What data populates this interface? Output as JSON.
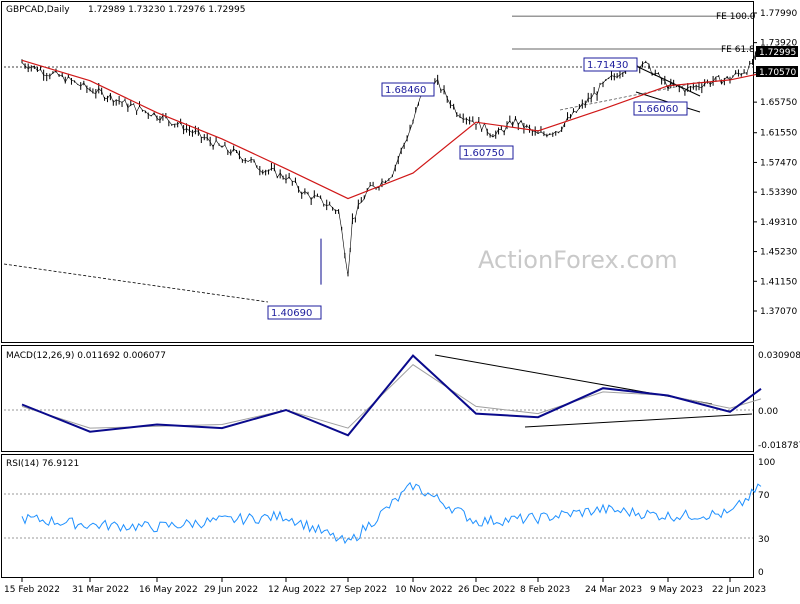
{
  "header": {
    "instrument": "GBPCAD,Daily",
    "ohlc": "1.72989 1.73230 1.72976 1.72995",
    "macd_label": "MACD(12,26,9) 0.011692 0.006077",
    "rsi_label": "RSI(14) 76.9121"
  },
  "watermark": "ActionForex.com",
  "colors": {
    "price": "#000000",
    "sma": "#d01818",
    "macd": "#0a0a8c",
    "signal": "#a0a0a0",
    "rsi": "#1e90ff",
    "callout": "#1c1c9c",
    "trendline": "#000000"
  },
  "price_axis": {
    "ticks": [
      "1.77990",
      "1.73920",
      "1.69800",
      "1.65750",
      "1.61550",
      "1.57470",
      "1.53390",
      "1.49310",
      "1.45230",
      "1.41150",
      "1.37070"
    ],
    "current_tag": "1.72995",
    "level_tag": "1.70570"
  },
  "macd_axis": {
    "ticks": [
      "0.030908",
      "0.00",
      "-0.018787"
    ]
  },
  "rsi_axis": {
    "ticks": [
      "100",
      "70",
      "30",
      "0"
    ]
  },
  "dates": [
    "15 Feb 2022",
    "31 Mar 2022",
    "16 May 2022",
    "29 Jun 2022",
    "12 Aug 2022",
    "27 Sep 2022",
    "10 Nov 2022",
    "26 Dec 2022",
    "8 Feb 2023",
    "24 Mar 2023",
    "9 May 2023",
    "22 Jun 2023"
  ],
  "annotations": {
    "fe100": "FE 100.0",
    "fe618": "FE 61.8",
    "low_140690": "1.40690",
    "high_168460": "1.68460",
    "low_160750": "1.60750",
    "high_171430": "1.71430",
    "low_166060": "1.66060"
  },
  "chart_data": {
    "type": "line",
    "subtype": "candlestick-approximation",
    "title": "GBPCAD,Daily",
    "price_series": {
      "name": "GBPCAD",
      "x": [
        "15 Feb 2022",
        "1 Mar 2022",
        "15 Mar 2022",
        "31 Mar 2022",
        "14 Apr 2022",
        "28 Apr 2022",
        "16 May 2022",
        "30 May 2022",
        "13 Jun 2022",
        "29 Jun 2022",
        "13 Jul 2022",
        "27 Jul 2022",
        "12 Aug 2022",
        "26 Aug 2022",
        "9 Sep 2022",
        "20 Sep 2022",
        "27 Sep 2022",
        "30 Sep 2022",
        "10 Oct 2022",
        "20 Oct 2022",
        "27 Oct 2022",
        "10 Nov 2022",
        "18 Nov 2022",
        "28 Nov 2022",
        "12 Dec 2022",
        "26 Dec 2022",
        "9 Jan 2023",
        "23 Jan 2023",
        "8 Feb 2023",
        "22 Feb 2023",
        "8 Mar 2023",
        "24 Mar 2023",
        "7 Apr 2023",
        "21 Apr 2023",
        "9 May 2023",
        "23 May 2023",
        "6 Jun 2023",
        "22 Jun 2023",
        "6 Jul 2023",
        "14 Jul 2023"
      ],
      "y": [
        1.712,
        1.7,
        1.69,
        1.675,
        1.665,
        1.652,
        1.64,
        1.628,
        1.612,
        1.595,
        1.583,
        1.566,
        1.555,
        1.532,
        1.52,
        1.508,
        1.425,
        1.495,
        1.535,
        1.548,
        1.56,
        1.63,
        1.677,
        1.683,
        1.645,
        1.63,
        1.612,
        1.632,
        1.612,
        1.62,
        1.648,
        1.68,
        1.703,
        1.712,
        1.68,
        1.675,
        1.685,
        1.69,
        1.705,
        1.73
      ]
    },
    "sma_series": {
      "x": [
        "15 Feb 2022",
        "31 Mar 2022",
        "16 May 2022",
        "29 Jun 2022",
        "12 Aug 2022",
        "27 Sep 2022",
        "10 Nov 2022",
        "26 Dec 2022",
        "8 Feb 2023",
        "24 Mar 2023",
        "9 May 2023",
        "22 Jun 2023",
        "14 Jul 2023"
      ],
      "y": [
        1.715,
        1.687,
        1.643,
        1.607,
        1.566,
        1.525,
        1.56,
        1.63,
        1.618,
        1.648,
        1.68,
        1.688,
        1.697
      ]
    },
    "levels": [
      {
        "label": "FE 100.0",
        "value": 1.7756
      },
      {
        "label": "FE 61.8",
        "value": 1.7305
      },
      {
        "label": "1.70570",
        "value": 1.7057
      }
    ],
    "pivots": [
      {
        "date": "27 Sep 2022",
        "value": 1.4069,
        "label": "1.40690"
      },
      {
        "date": "18 Nov 2022",
        "value": 1.6846,
        "label": "1.68460"
      },
      {
        "date": "26 Dec 2022",
        "value": 1.6075,
        "label": "1.60750"
      },
      {
        "date": "7 Apr 2023",
        "value": 1.7143,
        "label": "1.71430"
      },
      {
        "date": "9 May 2023",
        "value": 1.6606,
        "label": "1.66060"
      }
    ],
    "macd": {
      "x": [
        "15 Feb 2022",
        "31 Mar 2022",
        "16 May 2022",
        "29 Jun 2022",
        "12 Aug 2022",
        "27 Sep 2022",
        "10 Nov 2022",
        "26 Dec 2022",
        "8 Feb 2023",
        "24 Mar 2023",
        "9 May 2023",
        "22 Jun 2023",
        "14 Jul 2023"
      ],
      "macd": [
        0.003,
        -0.012,
        -0.008,
        -0.01,
        0.0,
        -0.014,
        0.03,
        -0.002,
        -0.004,
        0.012,
        0.008,
        -0.001,
        0.0117
      ],
      "signal": [
        0.002,
        -0.01,
        -0.009,
        -0.008,
        0.0,
        -0.01,
        0.025,
        0.002,
        -0.002,
        0.01,
        0.008,
        0.001,
        0.0061
      ],
      "ylim": [
        -0.018787,
        0.030908
      ]
    },
    "rsi": {
      "x": [
        "15 Feb 2022",
        "31 Mar 2022",
        "16 May 2022",
        "29 Jun 2022",
        "12 Aug 2022",
        "27 Sep 2022",
        "10 Nov 2022",
        "26 Dec 2022",
        "8 Feb 2023",
        "24 Mar 2023",
        "9 May 2023",
        "22 Jun 2023",
        "14 Jul 2023"
      ],
      "y": [
        48,
        42,
        40,
        46,
        50,
        25,
        78,
        45,
        48,
        56,
        50,
        52,
        76.9
      ],
      "ylim": [
        0,
        100
      ],
      "levels": [
        70,
        30
      ]
    },
    "price_ylim": [
      1.3707,
      1.7799
    ]
  }
}
